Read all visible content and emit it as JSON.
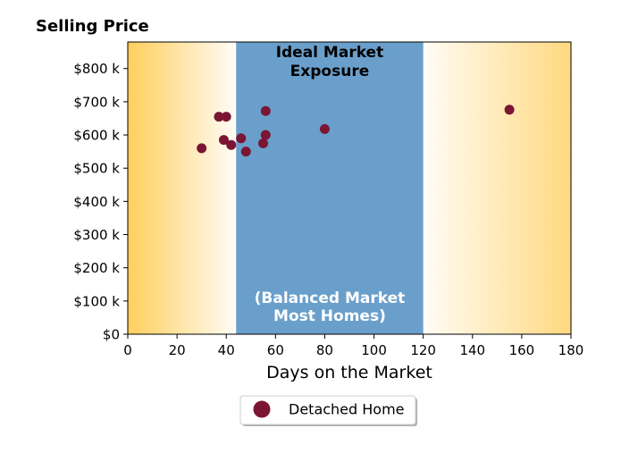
{
  "chart_data": {
    "type": "scatter",
    "title": "Selling Price",
    "xlabel": "Days on the Market",
    "ylabel": "",
    "xlim": [
      0,
      180
    ],
    "ylim": [
      0,
      880000
    ],
    "xticks": [
      0,
      20,
      40,
      60,
      80,
      100,
      120,
      140,
      160,
      180
    ],
    "xtick_labels": [
      "0",
      "20",
      "40",
      "60",
      "80",
      "100",
      "120",
      "140",
      "160",
      "180"
    ],
    "yticks": [
      0,
      100000,
      200000,
      300000,
      400000,
      500000,
      600000,
      700000,
      800000
    ],
    "ytick_labels": [
      "$0",
      "$100 k",
      "$200 k",
      "$300 k",
      "$400 k",
      "$500 k",
      "$600 k",
      "$700 k",
      "$800 k"
    ],
    "grid": false,
    "legend_position": "below",
    "regions": {
      "ideal": {
        "x_range": [
          44,
          120
        ],
        "label_top": "Ideal Market\nExposure",
        "label_bottom": "(Balanced Market\nMost Homes)",
        "color": "#6a9fcb"
      },
      "gradient_color": "#ffcc55"
    },
    "series": [
      {
        "name": "Detached Home",
        "color": "#7b1533",
        "x": [
          30,
          37,
          39,
          40,
          42,
          46,
          48,
          55,
          56,
          56,
          80,
          155
        ],
        "y": [
          560000,
          655000,
          585000,
          655000,
          570000,
          590000,
          550000,
          575000,
          600000,
          672000,
          618000,
          676000
        ]
      }
    ]
  }
}
